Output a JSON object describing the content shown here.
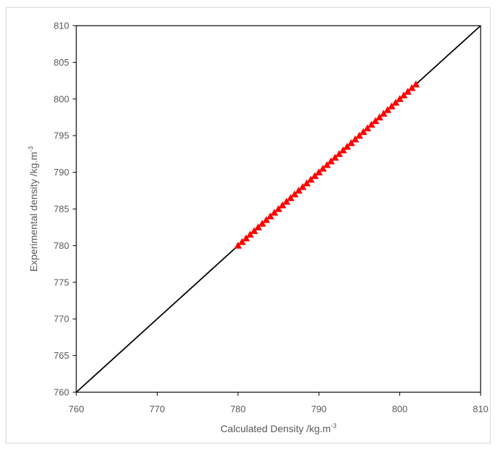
{
  "chart_data": {
    "type": "scatter",
    "xlabel": "Calculated Density /kg.m",
    "xlabel_sup": "-3",
    "ylabel": "Experimental density /kg.m",
    "ylabel_sup": "-3",
    "xlim": [
      760,
      810
    ],
    "ylim": [
      760,
      810
    ],
    "x_ticks": [
      760,
      770,
      780,
      790,
      800,
      810
    ],
    "y_ticks": [
      760,
      765,
      770,
      775,
      780,
      785,
      790,
      795,
      800,
      805,
      810
    ],
    "grid": false,
    "legend": "none",
    "reference_line": {
      "from": [
        760,
        760
      ],
      "to": [
        810,
        810
      ],
      "color": "#000000"
    },
    "marker": {
      "shape": "triangle",
      "color": "#ff0000"
    },
    "points": [
      [
        780.0,
        780.0
      ],
      [
        780.5,
        780.5
      ],
      [
        781.0,
        781.0
      ],
      [
        781.5,
        781.5
      ],
      [
        782.0,
        782.0
      ],
      [
        782.5,
        782.5
      ],
      [
        783.0,
        783.0
      ],
      [
        783.5,
        783.5
      ],
      [
        784.0,
        784.0
      ],
      [
        784.5,
        784.5
      ],
      [
        785.0,
        785.0
      ],
      [
        785.5,
        785.5
      ],
      [
        786.0,
        786.0
      ],
      [
        786.5,
        786.5
      ],
      [
        787.0,
        787.0
      ],
      [
        787.5,
        787.5
      ],
      [
        788.0,
        788.0
      ],
      [
        788.5,
        788.5
      ],
      [
        789.0,
        789.0
      ],
      [
        789.5,
        789.5
      ],
      [
        790.0,
        790.0
      ],
      [
        790.5,
        790.5
      ],
      [
        791.0,
        791.0
      ],
      [
        791.5,
        791.5
      ],
      [
        792.0,
        792.0
      ],
      [
        792.5,
        792.5
      ],
      [
        793.0,
        793.0
      ],
      [
        793.5,
        793.5
      ],
      [
        794.0,
        794.0
      ],
      [
        794.5,
        794.5
      ],
      [
        795.0,
        795.0
      ],
      [
        795.5,
        795.5
      ],
      [
        796.0,
        796.0
      ],
      [
        796.5,
        796.5
      ],
      [
        797.0,
        797.0
      ],
      [
        797.5,
        797.5
      ],
      [
        798.0,
        798.0
      ],
      [
        798.5,
        798.5
      ],
      [
        799.0,
        799.0
      ],
      [
        799.5,
        799.5
      ],
      [
        800.0,
        800.0
      ],
      [
        800.5,
        800.5
      ],
      [
        801.0,
        801.0
      ],
      [
        801.5,
        801.5
      ],
      [
        802.0,
        802.0
      ]
    ]
  }
}
